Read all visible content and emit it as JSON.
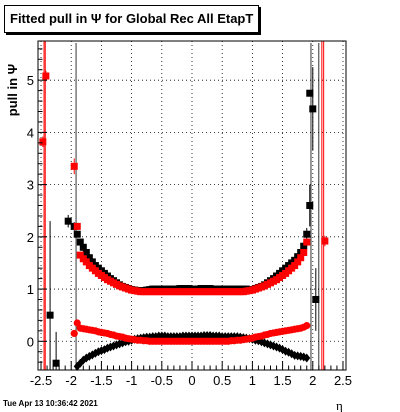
{
  "title": "Fitted pull in  Ψ  for Global Rec All EtapT",
  "timestamp": "Tue Apr 13 10:36:42 2021",
  "chart_data": {
    "type": "scatter",
    "xlabel": "η",
    "ylabel": "pull in  Ψ",
    "xlim": [
      -2.55,
      2.55
    ],
    "ylim": [
      -0.55,
      5.75
    ],
    "xticks": [
      -2.5,
      -2,
      -1.5,
      -1,
      -0.5,
      0,
      0.5,
      1,
      1.5,
      2,
      2.5
    ],
    "xtick_labels": [
      "-2.5",
      "-2",
      "-1.5",
      "-1",
      "-0.5",
      "0",
      "0.5",
      "1",
      "1.5",
      "2",
      "2.5"
    ],
    "yticks": [
      0,
      1,
      2,
      3,
      4,
      5
    ],
    "ytick_labels": [
      "0",
      "1",
      "2",
      "3",
      "4",
      "5"
    ],
    "grid": true,
    "colors": {
      "black_series": "#000000",
      "red_series": "#ff0000"
    },
    "vertical_lines_red": [
      -2.45,
      -2.43,
      2.15,
      2.18
    ],
    "vertical_lines_black": [
      -1.92,
      1.97,
      2.1
    ],
    "black_width": {
      "x": [
        -2.35,
        -2.25,
        -2.15,
        -2.05,
        -1.95,
        -1.9,
        -1.85,
        -1.8,
        -1.75,
        -1.7,
        -1.65,
        -1.6,
        -1.55,
        -1.5,
        -1.45,
        -1.4,
        -1.35,
        -1.3,
        -1.25,
        -1.2,
        -1.15,
        -1.1,
        -1.05,
        -1,
        -0.95,
        -0.9,
        -0.85,
        -0.8,
        -0.75,
        -0.7,
        -0.65,
        -0.6,
        -0.55,
        -0.5,
        -0.45,
        -0.4,
        -0.35,
        -0.3,
        -0.25,
        -0.2,
        -0.15,
        -0.1,
        -0.05,
        0,
        0.05,
        0.1,
        0.15,
        0.2,
        0.25,
        0.3,
        0.35,
        0.4,
        0.45,
        0.5,
        0.55,
        0.6,
        0.65,
        0.7,
        0.75,
        0.8,
        0.85,
        0.9,
        0.95,
        1,
        1.05,
        1.1,
        1.15,
        1.2,
        1.25,
        1.3,
        1.35,
        1.4,
        1.45,
        1.5,
        1.55,
        1.6,
        1.65,
        1.7,
        1.75,
        1.8,
        1.85,
        1.9,
        1.95,
        2,
        2.05
      ],
      "y": [
        0.5,
        -0.42,
        -0.58,
        2.3,
        2.2,
        2.05,
        1.9,
        1.8,
        1.7,
        1.6,
        1.52,
        1.45,
        1.4,
        1.35,
        1.3,
        1.25,
        1.2,
        1.16,
        1.12,
        1.08,
        1.05,
        1.03,
        1.01,
        0.99,
        0.98,
        0.97,
        0.97,
        0.97,
        0.98,
        0.99,
        1.0,
        1.0,
        1.0,
        1.0,
        1.0,
        1.0,
        1.0,
        1.0,
        1.0,
        1.01,
        1.01,
        1.01,
        1.01,
        1.0,
        1.0,
        1.0,
        1.01,
        1.01,
        1.01,
        1.01,
        1.0,
        1.0,
        1.0,
        1.0,
        1.0,
        1.0,
        1.0,
        1.0,
        1.0,
        1.0,
        1.0,
        1.0,
        0.98,
        0.99,
        1.01,
        1.03,
        1.05,
        1.08,
        1.12,
        1.16,
        1.2,
        1.25,
        1.3,
        1.35,
        1.4,
        1.45,
        1.5,
        1.55,
        1.62,
        1.7,
        1.82,
        2.05,
        2.6,
        4.45,
        0.8
      ],
      "yerr": [
        1.8,
        0.6,
        0.15,
        0.12,
        0.08,
        0.06,
        0.05,
        0.04,
        0.04,
        0.03,
        0.03,
        0.03,
        0.03,
        0.03,
        0.02,
        0.02,
        0.02,
        0.02,
        0.02,
        0.02,
        0.02,
        0.02,
        0.02,
        0.02,
        0.02,
        0.02,
        0.02,
        0.02,
        0.02,
        0.02,
        0.02,
        0.02,
        0.02,
        0.02,
        0.02,
        0.02,
        0.02,
        0.02,
        0.02,
        0.02,
        0.02,
        0.02,
        0.02,
        0.02,
        0.02,
        0.02,
        0.02,
        0.02,
        0.02,
        0.02,
        0.02,
        0.02,
        0.02,
        0.02,
        0.02,
        0.02,
        0.02,
        0.02,
        0.02,
        0.02,
        0.02,
        0.02,
        0.02,
        0.02,
        0.02,
        0.02,
        0.02,
        0.02,
        0.02,
        0.02,
        0.03,
        0.03,
        0.03,
        0.03,
        0.03,
        0.03,
        0.04,
        0.04,
        0.05,
        0.06,
        0.08,
        0.12,
        0.4,
        0.8,
        0.6
      ]
    },
    "black_mean": {
      "x": [
        -1.9,
        -1.85,
        -1.8,
        -1.75,
        -1.7,
        -1.65,
        -1.6,
        -1.55,
        -1.5,
        -1.45,
        -1.4,
        -1.35,
        -1.3,
        -1.25,
        -1.2,
        -1.15,
        -1.1,
        -1.05,
        -1,
        -0.95,
        -0.9,
        -0.85,
        -0.8,
        -0.75,
        -0.7,
        -0.65,
        -0.6,
        -0.55,
        -0.5,
        -0.45,
        -0.4,
        -0.35,
        -0.3,
        -0.25,
        -0.2,
        -0.15,
        -0.1,
        -0.05,
        0,
        0.05,
        0.1,
        0.15,
        0.2,
        0.25,
        0.3,
        0.35,
        0.4,
        0.45,
        0.5,
        0.55,
        0.6,
        0.65,
        0.7,
        0.75,
        0.8,
        0.85,
        0.9,
        0.95,
        1,
        1.05,
        1.1,
        1.15,
        1.2,
        1.25,
        1.3,
        1.35,
        1.4,
        1.45,
        1.5,
        1.55,
        1.6,
        1.65,
        1.7,
        1.75,
        1.8,
        1.85,
        1.9
      ],
      "y": [
        -0.48,
        -0.42,
        -0.36,
        -0.32,
        -0.29,
        -0.26,
        -0.23,
        -0.2,
        -0.18,
        -0.16,
        -0.13,
        -0.11,
        -0.09,
        -0.07,
        -0.05,
        -0.03,
        -0.01,
        0.0,
        0.02,
        0.04,
        0.05,
        0.06,
        0.07,
        0.08,
        0.08,
        0.09,
        0.09,
        0.1,
        0.1,
        0.1,
        0.09,
        0.09,
        0.09,
        0.09,
        0.09,
        0.1,
        0.1,
        0.1,
        0.1,
        0.1,
        0.1,
        0.1,
        0.11,
        0.11,
        0.11,
        0.1,
        0.1,
        0.1,
        0.09,
        0.09,
        0.09,
        0.09,
        0.09,
        0.09,
        0.08,
        0.07,
        0.06,
        0.05,
        0.04,
        0.02,
        0.01,
        -0.01,
        -0.03,
        -0.05,
        -0.07,
        -0.09,
        -0.11,
        -0.13,
        -0.16,
        -0.19,
        -0.21,
        -0.24,
        -0.27,
        -0.28,
        -0.29,
        -0.3,
        -0.32
      ],
      "yerr": 0.02
    },
    "red_width": {
      "x": [
        -2.47,
        -2.42,
        -1.95,
        -1.9,
        -1.85,
        -1.8,
        -1.75,
        -1.7,
        -1.65,
        -1.6,
        -1.55,
        -1.5,
        -1.45,
        -1.4,
        -1.35,
        -1.3,
        -1.25,
        -1.2,
        -1.15,
        -1.1,
        -1.05,
        -1,
        -0.95,
        -0.9,
        -0.85,
        -0.8,
        -0.75,
        -0.7,
        -0.65,
        -0.6,
        -0.55,
        -0.5,
        -0.45,
        -0.4,
        -0.35,
        -0.3,
        -0.25,
        -0.2,
        -0.15,
        -0.1,
        -0.05,
        0,
        0.05,
        0.1,
        0.15,
        0.2,
        0.25,
        0.3,
        0.35,
        0.4,
        0.45,
        0.5,
        0.55,
        0.6,
        0.65,
        0.7,
        0.75,
        0.8,
        0.85,
        0.9,
        0.95,
        1,
        1.05,
        1.1,
        1.15,
        1.2,
        1.25,
        1.3,
        1.35,
        1.4,
        1.45,
        1.5,
        1.55,
        1.6,
        1.65,
        1.7,
        1.75,
        1.8,
        1.85,
        1.9,
        2.2
      ],
      "y": [
        3.82,
        5.08,
        3.35,
        2.2,
        1.65,
        1.58,
        1.52,
        1.45,
        1.4,
        1.35,
        1.3,
        1.26,
        1.22,
        1.18,
        1.15,
        1.12,
        1.09,
        1.06,
        1.04,
        1.02,
        1.0,
        0.98,
        0.97,
        0.96,
        0.95,
        0.95,
        0.95,
        0.95,
        0.95,
        0.95,
        0.95,
        0.95,
        0.95,
        0.95,
        0.95,
        0.95,
        0.95,
        0.95,
        0.95,
        0.95,
        0.95,
        0.95,
        0.95,
        0.95,
        0.95,
        0.95,
        0.95,
        0.95,
        0.95,
        0.95,
        0.95,
        0.95,
        0.95,
        0.95,
        0.95,
        0.95,
        0.95,
        0.95,
        0.95,
        0.96,
        0.97,
        0.98,
        1.0,
        1.02,
        1.04,
        1.06,
        1.09,
        1.12,
        1.15,
        1.18,
        1.22,
        1.26,
        1.3,
        1.35,
        1.4,
        1.45,
        1.52,
        1.6,
        1.7,
        1.9,
        1.92
      ],
      "yerr": [
        0.1,
        0.1,
        0.15,
        0.06,
        0.04,
        0.03,
        0.03,
        0.03,
        0.02,
        0.02,
        0.02,
        0.02,
        0.02,
        0.02,
        0.02,
        0.02,
        0.02,
        0.02,
        0.02,
        0.02,
        0.02,
        0.02,
        0.02,
        0.02,
        0.02,
        0.02,
        0.02,
        0.02,
        0.02,
        0.02,
        0.02,
        0.02,
        0.02,
        0.02,
        0.02,
        0.02,
        0.02,
        0.02,
        0.02,
        0.02,
        0.02,
        0.02,
        0.02,
        0.02,
        0.02,
        0.02,
        0.02,
        0.02,
        0.02,
        0.02,
        0.02,
        0.02,
        0.02,
        0.02,
        0.02,
        0.02,
        0.02,
        0.02,
        0.02,
        0.02,
        0.02,
        0.02,
        0.02,
        0.02,
        0.02,
        0.02,
        0.02,
        0.02,
        0.02,
        0.02,
        0.02,
        0.02,
        0.02,
        0.02,
        0.03,
        0.03,
        0.03,
        0.04,
        0.05,
        0.06,
        0.1
      ]
    },
    "red_mean": {
      "x": [
        -1.95,
        -1.9,
        -1.85,
        -1.8,
        -1.75,
        -1.7,
        -1.65,
        -1.6,
        -1.55,
        -1.5,
        -1.45,
        -1.4,
        -1.35,
        -1.3,
        -1.25,
        -1.2,
        -1.15,
        -1.1,
        -1.05,
        -1,
        -0.95,
        -0.9,
        -0.85,
        -0.8,
        -0.75,
        -0.7,
        -0.65,
        -0.6,
        -0.55,
        -0.5,
        -0.45,
        -0.4,
        -0.35,
        -0.3,
        -0.25,
        -0.2,
        -0.15,
        -0.1,
        -0.05,
        0,
        0.05,
        0.1,
        0.15,
        0.2,
        0.25,
        0.3,
        0.35,
        0.4,
        0.45,
        0.5,
        0.55,
        0.6,
        0.65,
        0.7,
        0.75,
        0.8,
        0.85,
        0.9,
        0.95,
        1,
        1.05,
        1.1,
        1.15,
        1.2,
        1.25,
        1.3,
        1.35,
        1.4,
        1.45,
        1.5,
        1.55,
        1.6,
        1.65,
        1.7,
        1.75,
        1.8,
        1.85,
        1.9
      ],
      "y": [
        0.15,
        0.35,
        0.25,
        0.24,
        0.23,
        0.22,
        0.21,
        0.2,
        0.18,
        0.17,
        0.16,
        0.15,
        0.13,
        0.12,
        0.1,
        0.09,
        0.08,
        0.06,
        0.05,
        0.04,
        0.03,
        0.02,
        0.02,
        0.01,
        0.01,
        0.0,
        0.0,
        0.0,
        0.0,
        0.0,
        0.0,
        0.0,
        0.0,
        0.0,
        0.0,
        0.0,
        0.0,
        0.0,
        0.0,
        0.0,
        0.0,
        0.0,
        0.0,
        0.0,
        0.0,
        0.0,
        0.0,
        0.0,
        0.0,
        0.0,
        0.0,
        0.0,
        0.01,
        0.01,
        0.02,
        0.02,
        0.03,
        0.04,
        0.05,
        0.06,
        0.08,
        0.09,
        0.1,
        0.12,
        0.13,
        0.15,
        0.16,
        0.17,
        0.18,
        0.19,
        0.2,
        0.21,
        0.22,
        0.23,
        0.24,
        0.25,
        0.27,
        0.3
      ],
      "yerr": 0.02
    },
    "black_outliers": [
      {
        "x": 1.95,
        "y": 4.75,
        "shape": "square"
      }
    ]
  }
}
